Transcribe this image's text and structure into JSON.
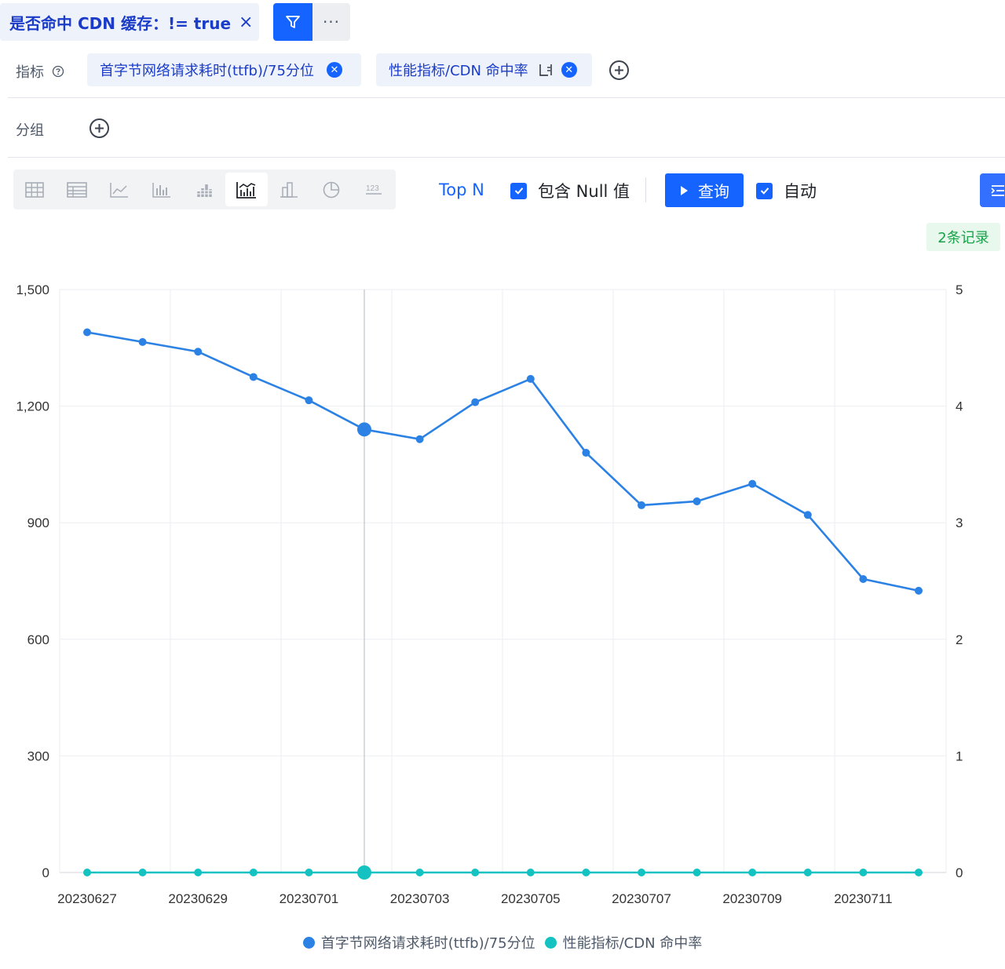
{
  "filter": {
    "label": "是否命中 CDN 缓存：!= true",
    "close": "×"
  },
  "toolbar_top": {
    "more": "···"
  },
  "metrics": {
    "label": "指标",
    "help_icon": "question-circle-icon",
    "items": [
      {
        "label": "首字节网络请求耗时(ttfb)/75分位"
      },
      {
        "label": "性能指标/CDN 命中率"
      }
    ]
  },
  "group": {
    "label": "分组"
  },
  "chart_types": [
    "grid-table-icon",
    "table-icon",
    "line-chart-icon",
    "bar-chart-icon",
    "stacked-bar-icon",
    "line-area-icon",
    "column-chart-icon",
    "pie-chart-icon",
    "number-icon"
  ],
  "controls": {
    "topn": "Top N",
    "include_null": "包含 Null 值",
    "query": "查询",
    "auto": "自动",
    "records": "2条记录"
  },
  "colors": {
    "primary": "#1664ff",
    "series1": "#2b82e4",
    "series2": "#14c2c2"
  },
  "chart_data": {
    "type": "line",
    "x": [
      "20230627",
      "20230628",
      "20230629",
      "20230630",
      "20230701",
      "20230702",
      "20230703",
      "20230704",
      "20230705",
      "20230706",
      "20230707",
      "20230708",
      "20230709",
      "20230710",
      "20230711",
      "20230712"
    ],
    "xtick_labels": [
      "20230627",
      "20230629",
      "20230701",
      "20230703",
      "20230705",
      "20230707",
      "20230709",
      "20230711"
    ],
    "y_left": {
      "ticks": [
        "0",
        "300",
        "600",
        "900",
        "1,200",
        "1,500"
      ],
      "range": [
        0,
        1500
      ]
    },
    "y_right": {
      "ticks": [
        "0",
        "1",
        "2",
        "3",
        "4",
        "5"
      ],
      "range": [
        0,
        5
      ]
    },
    "series": [
      {
        "name": "首字节网络请求耗时(ttfb)/75分位",
        "axis": "left",
        "values": [
          1390,
          1365,
          1340,
          1275,
          1215,
          1140,
          1115,
          1210,
          1270,
          1080,
          945,
          955,
          1000,
          920,
          755,
          725
        ]
      },
      {
        "name": "性能指标/CDN 命中率",
        "axis": "right",
        "values": [
          0,
          0,
          0,
          0,
          0,
          0,
          0,
          0,
          0,
          0,
          0,
          0,
          0,
          0,
          0,
          0
        ]
      }
    ],
    "highlight_category": "20230702",
    "grid": true,
    "legend": "bottom"
  }
}
